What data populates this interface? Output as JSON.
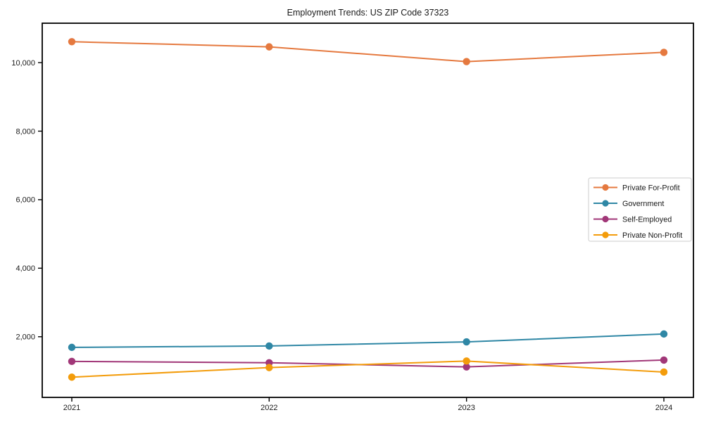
{
  "title": "Employment Trends: US ZIP Code 37323",
  "chart_data": {
    "type": "line",
    "title": "Employment Trends: US ZIP Code 37323",
    "xlabel": "",
    "ylabel": "",
    "categories": [
      "2021",
      "2022",
      "2023",
      "2024"
    ],
    "series": [
      {
        "name": "Private For-Profit",
        "color": "#e5793f",
        "values": [
          10610,
          10460,
          10030,
          10300
        ]
      },
      {
        "name": "Government",
        "color": "#2f87a5",
        "values": [
          1690,
          1730,
          1850,
          2080
        ]
      },
      {
        "name": "Self-Employed",
        "color": "#a13778",
        "values": [
          1280,
          1240,
          1120,
          1320
        ]
      },
      {
        "name": "Private Non-Profit",
        "color": "#f39c0b",
        "values": [
          820,
          1100,
          1290,
          970
        ]
      }
    ],
    "ylim": [
      230,
      11150
    ],
    "y_ticks": [
      2000,
      4000,
      6000,
      8000,
      10000
    ],
    "y_tick_labels": [
      "2,000",
      "4,000",
      "6,000",
      "8,000",
      "10,000"
    ],
    "grid": false,
    "marker": "circle",
    "legend_position": "center-right",
    "frame_color": "#000000",
    "legend_border_color": "#cccccc",
    "background_color": "#ffffff"
  }
}
